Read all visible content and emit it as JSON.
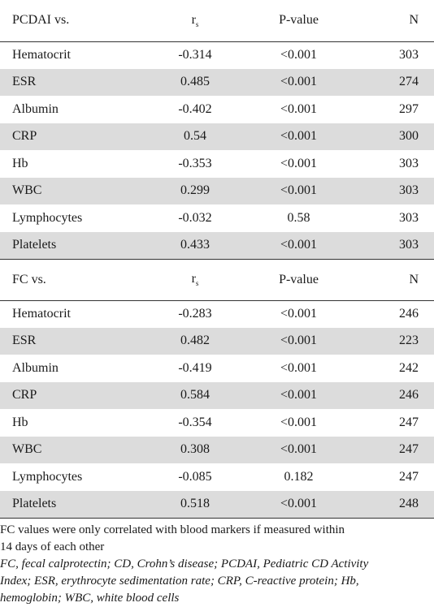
{
  "table": {
    "sections": [
      {
        "header": {
          "label": "PCDAI vs.",
          "rs_main": "r",
          "rs_sub": "s",
          "pvalue": "P-value",
          "n": "N"
        },
        "rows": [
          {
            "marker": "Hematocrit",
            "rs": "-0.314",
            "p": "<0.001",
            "n": "303"
          },
          {
            "marker": "ESR",
            "rs": "0.485",
            "p": "<0.001",
            "n": "274"
          },
          {
            "marker": "Albumin",
            "rs": "-0.402",
            "p": "<0.001",
            "n": "297"
          },
          {
            "marker": "CRP",
            "rs": "0.54",
            "p": "<0.001",
            "n": "300"
          },
          {
            "marker": "Hb",
            "rs": "-0.353",
            "p": "<0.001",
            "n": "303"
          },
          {
            "marker": "WBC",
            "rs": "0.299",
            "p": "<0.001",
            "n": "303"
          },
          {
            "marker": "Lymphocytes",
            "rs": "-0.032",
            "p": "0.58",
            "n": "303"
          },
          {
            "marker": "Platelets",
            "rs": "0.433",
            "p": "<0.001",
            "n": "303"
          }
        ]
      },
      {
        "header": {
          "label": "FC vs.",
          "rs_main": "r",
          "rs_sub": "s",
          "pvalue": "P-value",
          "n": "N"
        },
        "rows": [
          {
            "marker": "Hematocrit",
            "rs": "-0.283",
            "p": "<0.001",
            "n": "246"
          },
          {
            "marker": "ESR",
            "rs": "0.482",
            "p": "<0.001",
            "n": "223"
          },
          {
            "marker": "Albumin",
            "rs": "-0.419",
            "p": "<0.001",
            "n": "242"
          },
          {
            "marker": "CRP",
            "rs": "0.584",
            "p": "<0.001",
            "n": "246"
          },
          {
            "marker": "Hb",
            "rs": "-0.354",
            "p": "<0.001",
            "n": "247"
          },
          {
            "marker": "WBC",
            "rs": "0.308",
            "p": "<0.001",
            "n": "247"
          },
          {
            "marker": "Lymphocytes",
            "rs": "-0.085",
            "p": "0.182",
            "n": "247"
          },
          {
            "marker": "Platelets",
            "rs": "0.518",
            "p": "<0.001",
            "n": "248"
          }
        ]
      }
    ]
  },
  "notes": {
    "line1": "FC values were only correlated with blood markers if measured within",
    "line2": "14 days of each other",
    "abbrev1": "FC, fecal calprotectin; CD, Crohn’s disease; PCDAI, Pediatric CD Activity",
    "abbrev2": "Index; ESR, erythrocyte sedimentation rate; CRP, C-reactive protein; Hb,",
    "abbrev3": "hemoglobin; WBC, white blood cells"
  },
  "colors": {
    "row_shade": "#dcdcdc",
    "rule": "#333333",
    "text": "#1a1a1a"
  }
}
